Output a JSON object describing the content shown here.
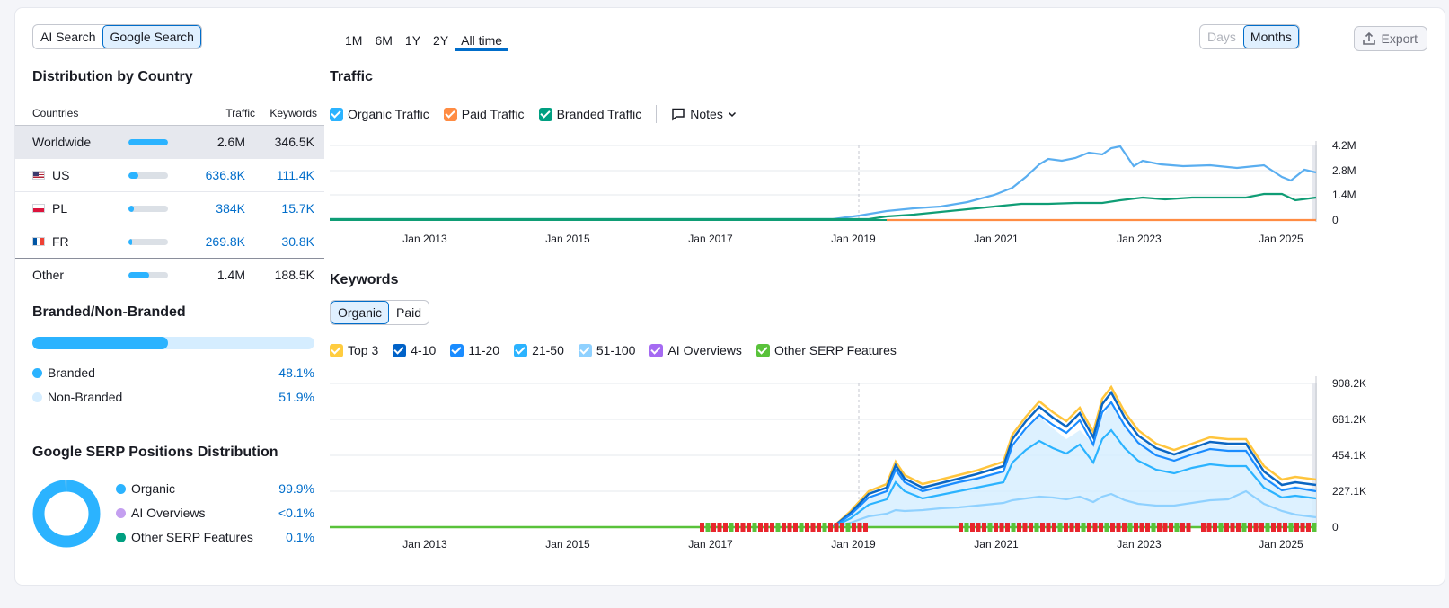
{
  "search_toggle": {
    "options": [
      "AI Search",
      "Google Search"
    ],
    "active": "Google Search"
  },
  "periods": {
    "options": [
      "1M",
      "6M",
      "1Y",
      "2Y",
      "All time"
    ],
    "active": "All time"
  },
  "granularity": {
    "options": [
      "Days",
      "Months"
    ],
    "active": "Months"
  },
  "export_label": "Export",
  "distribution": {
    "title": "Distribution by Country",
    "headers": {
      "countries": "Countries",
      "traffic": "Traffic",
      "keywords": "Keywords"
    },
    "rows": [
      {
        "name": "Worldwide",
        "traffic": "2.6M",
        "keywords": "346.5K",
        "share": 1.0,
        "flag": ""
      },
      {
        "name": "US",
        "traffic": "636.8K",
        "keywords": "111.4K",
        "share": 0.24,
        "flag": "us"
      },
      {
        "name": "PL",
        "traffic": "384K",
        "keywords": "15.7K",
        "share": 0.14,
        "flag": "pl"
      },
      {
        "name": "FR",
        "traffic": "269.8K",
        "keywords": "30.8K",
        "share": 0.1,
        "flag": "fr"
      },
      {
        "name": "Other",
        "traffic": "1.4M",
        "keywords": "188.5K",
        "share": 0.53,
        "flag": ""
      }
    ]
  },
  "branded": {
    "title": "Branded/Non-Branded",
    "branded_share": 0.481,
    "items": [
      {
        "label": "Branded",
        "value": "48.1%",
        "color": "#2bb3ff"
      },
      {
        "label": "Non-Branded",
        "value": "51.9%",
        "color": "#d5edff"
      }
    ]
  },
  "serp": {
    "title": "Google SERP Positions Distribution",
    "items": [
      {
        "label": "Organic",
        "value": "99.9%",
        "color": "#2bb3ff"
      },
      {
        "label": "AI Overviews",
        "value": "<0.1%",
        "color": "#c49ff0"
      },
      {
        "label": "Other SERP Features",
        "value": "0.1%",
        "color": "#009f81"
      }
    ]
  },
  "traffic": {
    "title": "Traffic",
    "legend": [
      {
        "label": "Organic Traffic",
        "color": "#2bb3ff"
      },
      {
        "label": "Paid Traffic",
        "color": "#ff8c43"
      },
      {
        "label": "Branded Traffic",
        "color": "#009f81"
      }
    ],
    "notes_label": "Notes",
    "y_ticks": [
      "4.2M",
      "2.8M",
      "1.4M",
      "0"
    ],
    "x_ticks": [
      "Jan 2013",
      "Jan 2015",
      "Jan 2017",
      "Jan 2019",
      "Jan 2021",
      "Jan 2023",
      "Jan 2025"
    ]
  },
  "keywords": {
    "title": "Keywords",
    "tabs": [
      "Organic",
      "Paid"
    ],
    "active_tab": "Organic",
    "legend": [
      {
        "label": "Top 3",
        "color": "#ffcc3f"
      },
      {
        "label": "4-10",
        "color": "#0062c8"
      },
      {
        "label": "11-20",
        "color": "#1a8cff"
      },
      {
        "label": "21-50",
        "color": "#2bb3ff"
      },
      {
        "label": "51-100",
        "color": "#8fd1ff"
      },
      {
        "label": "AI Overviews",
        "color": "#a56af2"
      },
      {
        "label": "Other SERP Features",
        "color": "#59c23a"
      }
    ],
    "y_ticks": [
      "908.2K",
      "681.2K",
      "454.1K",
      "227.1K",
      "0"
    ],
    "x_ticks": [
      "Jan 2013",
      "Jan 2015",
      "Jan 2017",
      "Jan 2019",
      "Jan 2021",
      "Jan 2023",
      "Jan 2025"
    ]
  }
}
